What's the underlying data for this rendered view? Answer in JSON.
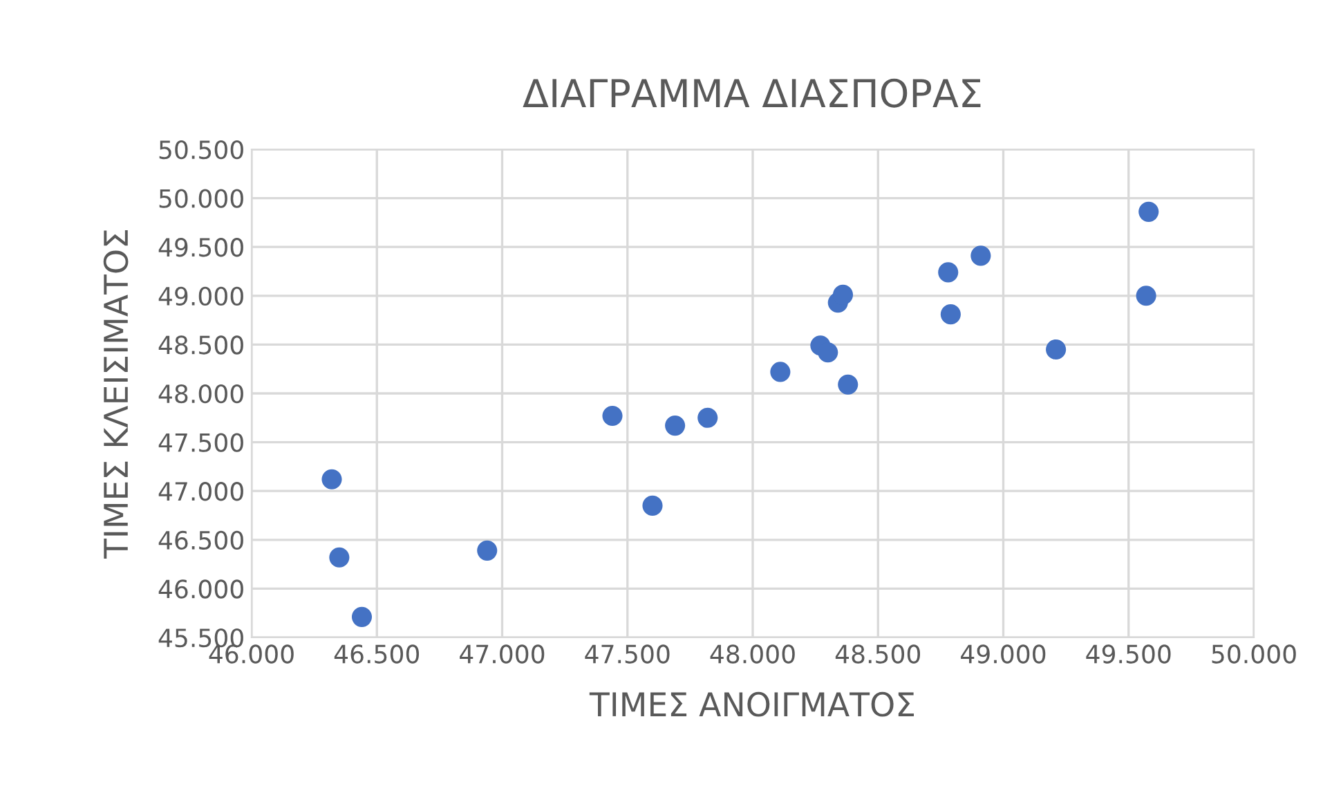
{
  "chart_data": {
    "type": "scatter",
    "title": "ΔΙΑΓΡΑΜΜΑ ΔΙΑΣΠΟΡΑΣ",
    "xlabel": "ΤΙΜΕΣ ΑΝΟΙΓΜΑΤΟΣ",
    "ylabel": "ΤΙΜΕΣ ΚΛΕΙΣΙΜΑΤΟΣ",
    "x": [
      46320,
      46350,
      46440,
      46940,
      47440,
      47600,
      47690,
      47820,
      48110,
      48270,
      48300,
      48380,
      48340,
      48360,
      48780,
      48910,
      48790,
      49210,
      49580,
      49570
    ],
    "series": [
      {
        "color": "#4472c4",
        "values": [
          47120,
          46320,
          45710,
          46390,
          47770,
          46850,
          47670,
          47750,
          48220,
          48490,
          48420,
          48090,
          48930,
          49010,
          49240,
          49410,
          48810,
          48450,
          49860,
          49000
        ]
      }
    ],
    "xlim": [
      46000,
      50000
    ],
    "ylim": [
      45500,
      50500
    ],
    "xticks": [
      {
        "value": 46000,
        "label": "46.000"
      },
      {
        "value": 46500,
        "label": "46.500"
      },
      {
        "value": 47000,
        "label": "47.000"
      },
      {
        "value": 47500,
        "label": "47.500"
      },
      {
        "value": 48000,
        "label": "48.000"
      },
      {
        "value": 48500,
        "label": "48.500"
      },
      {
        "value": 49000,
        "label": "49.000"
      },
      {
        "value": 49500,
        "label": "49.500"
      },
      {
        "value": 50000,
        "label": "50.000"
      }
    ],
    "yticks": [
      {
        "value": 45500,
        "label": "45.500"
      },
      {
        "value": 46000,
        "label": "46.000"
      },
      {
        "value": 46500,
        "label": "46.500"
      },
      {
        "value": 47000,
        "label": "47.000"
      },
      {
        "value": 47500,
        "label": "47.500"
      },
      {
        "value": 48000,
        "label": "48.000"
      },
      {
        "value": 48500,
        "label": "48.500"
      },
      {
        "value": 49000,
        "label": "49.000"
      },
      {
        "value": 49500,
        "label": "49.500"
      },
      {
        "value": 50000,
        "label": "50.000"
      },
      {
        "value": 50500,
        "label": "50.500"
      }
    ],
    "grid": true,
    "marker": "circle"
  }
}
